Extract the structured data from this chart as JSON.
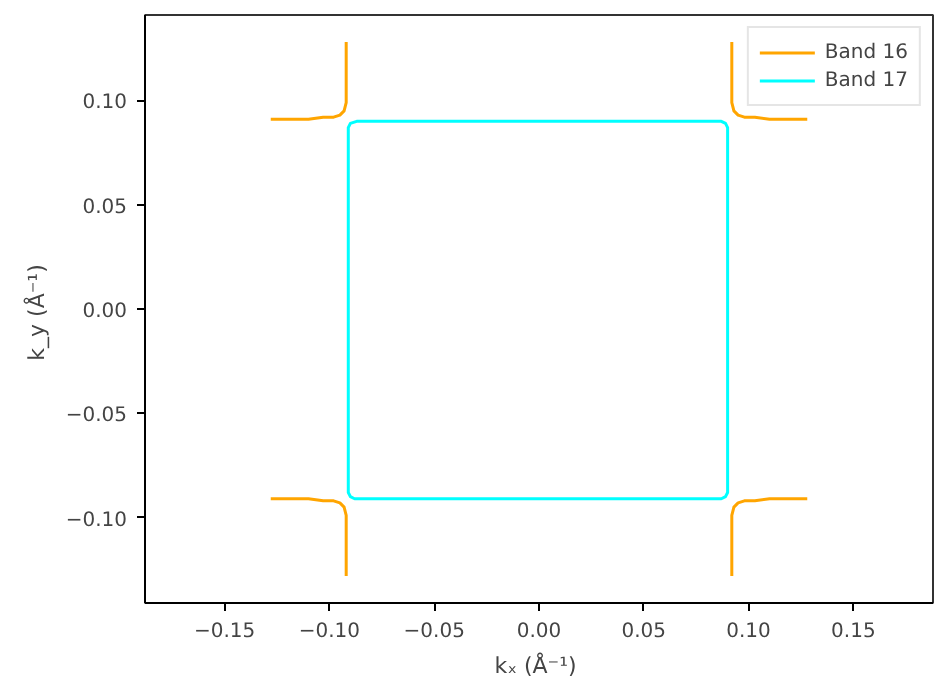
{
  "chart_data": {
    "type": "line",
    "xlabel": "kₓ  (Å⁻¹)",
    "ylabel": "k_y  (Å⁻¹)",
    "xlim": [
      -0.188,
      0.188
    ],
    "ylim": [
      -0.141,
      0.141
    ],
    "xticks": [
      {
        "value": -0.15,
        "label": "−0.15"
      },
      {
        "value": -0.1,
        "label": "−0.10"
      },
      {
        "value": -0.05,
        "label": "−0.05"
      },
      {
        "value": 0,
        "label": "0.00"
      },
      {
        "value": 0.05,
        "label": "0.05"
      },
      {
        "value": 0.1,
        "label": "0.10"
      },
      {
        "value": 0.15,
        "label": "0.15"
      }
    ],
    "yticks": [
      {
        "value": -0.1,
        "label": "−0.10"
      },
      {
        "value": -0.05,
        "label": "−0.05"
      },
      {
        "value": 0,
        "label": "0.00"
      },
      {
        "value": 0.05,
        "label": "0.05"
      },
      {
        "value": 0.1,
        "label": "0.10"
      }
    ],
    "grid": false,
    "legend": "top right",
    "series": [
      {
        "name": "Band 16",
        "color": "#ffa500",
        "x": [
          -0.128,
          -0.12,
          -0.11,
          -0.103,
          -0.098,
          -0.095,
          -0.093,
          -0.092,
          -0.092,
          -0.092,
          null,
          0.128,
          0.12,
          0.11,
          0.103,
          0.098,
          0.095,
          0.093,
          0.092,
          0.092,
          0.092,
          null,
          -0.128,
          -0.12,
          -0.11,
          -0.103,
          -0.098,
          -0.095,
          -0.093,
          -0.092,
          -0.092,
          -0.092,
          null,
          0.128,
          0.12,
          0.11,
          0.103,
          0.098,
          0.095,
          0.093,
          0.092,
          0.092,
          0.092
        ],
        "values": [
          0.091,
          0.091,
          0.091,
          0.092,
          0.092,
          0.093,
          0.095,
          0.099,
          0.105,
          0.128,
          null,
          0.091,
          0.091,
          0.091,
          0.092,
          0.092,
          0.093,
          0.095,
          0.099,
          0.105,
          0.128,
          null,
          -0.091,
          -0.091,
          -0.091,
          -0.092,
          -0.092,
          -0.093,
          -0.095,
          -0.099,
          -0.105,
          -0.128,
          null,
          -0.091,
          -0.091,
          -0.091,
          -0.092,
          -0.092,
          -0.093,
          -0.095,
          -0.099,
          -0.105,
          -0.128
        ]
      },
      {
        "name": "Band 17",
        "color": "#00ffff",
        "x": [
          -0.091,
          -0.091,
          -0.09,
          -0.087,
          0.087,
          0.089,
          0.09,
          0.09,
          null,
          -0.091,
          -0.091,
          -0.09,
          -0.088,
          0.087,
          0.089,
          0.09,
          0.09
        ],
        "values": [
          0.0,
          0.087,
          0.089,
          0.09,
          0.09,
          0.089,
          0.087,
          0.0,
          null,
          0.0,
          -0.088,
          -0.09,
          -0.091,
          -0.091,
          -0.09,
          -0.088,
          0.0
        ]
      }
    ]
  }
}
